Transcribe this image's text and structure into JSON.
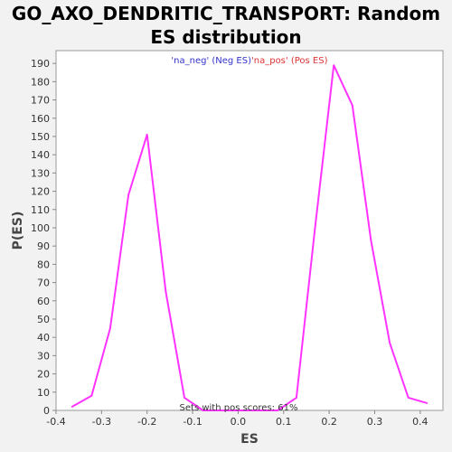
{
  "chart_data": {
    "type": "line",
    "title": "GO_AXO_DENDRITIC_TRANSPORT: Random ES distribution",
    "xlabel": "ES",
    "ylabel": "P(ES)",
    "xlim": [
      -0.4,
      0.45
    ],
    "ylim": [
      0,
      197
    ],
    "xticks": [
      "-0.4",
      "-0.3",
      "-0.2",
      "-0.1",
      "0.0",
      "0.1",
      "0.2",
      "0.3",
      "0.4"
    ],
    "xtick_values": [
      -0.4,
      -0.3,
      -0.2,
      -0.1,
      0.0,
      0.1,
      0.2,
      0.3,
      0.4
    ],
    "yticks": [
      "0",
      "10",
      "20",
      "30",
      "40",
      "50",
      "60",
      "70",
      "80",
      "90",
      "100",
      "110",
      "120",
      "130",
      "140",
      "150",
      "160",
      "170",
      "180",
      "190"
    ],
    "ytick_values": [
      0,
      10,
      20,
      30,
      40,
      50,
      60,
      70,
      80,
      90,
      100,
      110,
      120,
      130,
      140,
      150,
      160,
      170,
      180,
      190
    ],
    "legend": [
      {
        "label": "'na_neg' (Neg ES)",
        "color": "#3333cc"
      },
      {
        "label": "'na_pos' (Pos ES)",
        "color": "#dd3333"
      }
    ],
    "annotation": "Sets with pos scores: 61%",
    "series": [
      {
        "name": "Random ES",
        "color": "#ff33ff",
        "x": [
          -0.365,
          -0.322,
          -0.281,
          -0.241,
          -0.2,
          -0.159,
          -0.118,
          -0.077,
          -0.036,
          0.005,
          0.046,
          0.087,
          0.128,
          0.169,
          0.21,
          0.251,
          0.292,
          0.333,
          0.374,
          0.415
        ],
        "y": [
          2,
          8,
          45,
          118,
          151,
          65,
          7,
          0,
          0,
          0,
          0,
          0,
          7,
          100,
          189,
          167,
          93,
          37,
          7,
          4
        ]
      }
    ]
  }
}
